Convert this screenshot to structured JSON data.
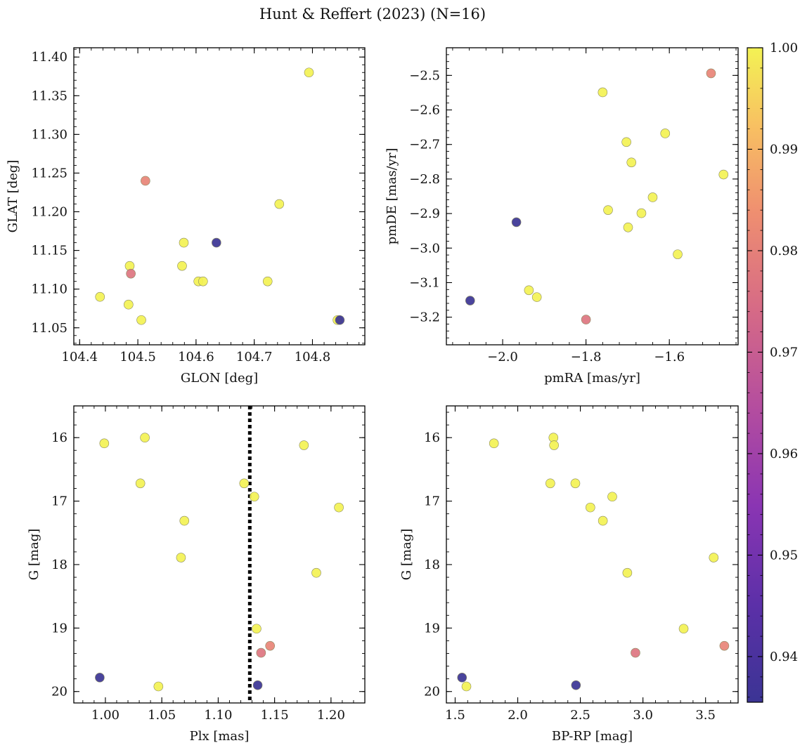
{
  "figure_title": "Hunt & Reffert (2023) (N=16)",
  "colorbar": {
    "range": [
      0.9355,
      1.0
    ],
    "ticks": [
      "0.94",
      "0.95",
      "0.96",
      "0.97",
      "0.98",
      "0.99",
      "1.00"
    ],
    "tick_values": [
      0.94,
      0.95,
      0.96,
      0.97,
      0.98,
      0.99,
      1.0
    ],
    "colormap": "plasma"
  },
  "chart_data": [
    {
      "type": "scatter",
      "xlabel": "GLON [deg]",
      "ylabel": "GLAT [deg]",
      "xlim": [
        104.39,
        104.89
      ],
      "ylim": [
        11.028,
        11.412
      ],
      "y_inverted": false,
      "xticks": [
        104.4,
        104.5,
        104.6,
        104.7,
        104.8
      ],
      "xtick_labels": [
        "104.4",
        "104.5",
        "104.6",
        "104.7",
        "104.8"
      ],
      "yticks": [
        11.05,
        11.1,
        11.15,
        11.2,
        11.25,
        11.3,
        11.35,
        11.4
      ],
      "ytick_labels": [
        "11.05",
        "11.10",
        "11.15",
        "11.20",
        "11.25",
        "11.30",
        "11.35",
        "11.40"
      ],
      "points": [
        {
          "x": 104.435,
          "y": 11.09,
          "c": 1.0
        },
        {
          "x": 104.484,
          "y": 11.08,
          "c": 1.0
        },
        {
          "x": 104.486,
          "y": 11.13,
          "c": 1.0
        },
        {
          "x": 104.488,
          "y": 11.12,
          "c": 0.977
        },
        {
          "x": 104.506,
          "y": 11.06,
          "c": 1.0
        },
        {
          "x": 104.513,
          "y": 11.24,
          "c": 0.981
        },
        {
          "x": 104.576,
          "y": 11.13,
          "c": 1.0
        },
        {
          "x": 104.579,
          "y": 11.16,
          "c": 1.0
        },
        {
          "x": 104.604,
          "y": 11.11,
          "c": 1.0
        },
        {
          "x": 104.612,
          "y": 11.11,
          "c": 1.0
        },
        {
          "x": 104.635,
          "y": 11.16,
          "c": 0.9355
        },
        {
          "x": 104.723,
          "y": 11.11,
          "c": 1.0
        },
        {
          "x": 104.743,
          "y": 11.21,
          "c": 1.0
        },
        {
          "x": 104.794,
          "y": 11.38,
          "c": 1.0
        },
        {
          "x": 104.847,
          "y": 11.06,
          "c": 0.9355
        },
        {
          "x": 104.843,
          "y": 11.06,
          "c": 1.0
        }
      ]
    },
    {
      "type": "scatter",
      "xlabel": "pmRA [mas/yr]",
      "ylabel": "pmDE [mas/yr]",
      "xlim": [
        -2.135,
        -1.435
      ],
      "ylim": [
        -3.28,
        -2.42
      ],
      "y_inverted": false,
      "xticks": [
        -2.0,
        -1.8,
        -1.6
      ],
      "xtick_labels": [
        "−2.0",
        "−1.8",
        "−1.6"
      ],
      "yticks": [
        -3.2,
        -3.1,
        -3.0,
        -2.9,
        -2.8,
        -2.7,
        -2.6,
        -2.5
      ],
      "ytick_labels": [
        "−3.2",
        "−3.1",
        "−3.0",
        "−2.9",
        "−2.8",
        "−2.7",
        "−2.6",
        "−2.5"
      ],
      "points": [
        {
          "x": -2.078,
          "y": -3.152,
          "c": 0.9355
        },
        {
          "x": -1.967,
          "y": -2.925,
          "c": 0.9355
        },
        {
          "x": -1.937,
          "y": -3.122,
          "c": 1.0
        },
        {
          "x": -1.918,
          "y": -3.142,
          "c": 1.0
        },
        {
          "x": -1.8,
          "y": -3.207,
          "c": 0.977
        },
        {
          "x": -1.76,
          "y": -2.549,
          "c": 1.0
        },
        {
          "x": -1.747,
          "y": -2.89,
          "c": 1.0
        },
        {
          "x": -1.703,
          "y": -2.693,
          "c": 1.0
        },
        {
          "x": -1.699,
          "y": -2.94,
          "c": 1.0
        },
        {
          "x": -1.691,
          "y": -2.752,
          "c": 1.0
        },
        {
          "x": -1.667,
          "y": -2.899,
          "c": 1.0
        },
        {
          "x": -1.64,
          "y": -2.853,
          "c": 1.0
        },
        {
          "x": -1.61,
          "y": -2.668,
          "c": 1.0
        },
        {
          "x": -1.58,
          "y": -3.018,
          "c": 1.0
        },
        {
          "x": -1.5,
          "y": -2.494,
          "c": 0.981
        },
        {
          "x": -1.47,
          "y": -2.787,
          "c": 1.0
        }
      ]
    },
    {
      "type": "scatter",
      "xlabel": "Plx [mas]",
      "ylabel": "G [mag]",
      "xlim": [
        0.972,
        1.23
      ],
      "ylim": [
        20.18,
        15.5
      ],
      "y_inverted": true,
      "xticks": [
        1.0,
        1.05,
        1.1,
        1.15,
        1.2
      ],
      "xtick_labels": [
        "1.00",
        "1.05",
        "1.10",
        "1.15",
        "1.20"
      ],
      "yticks": [
        16,
        17,
        18,
        19,
        20
      ],
      "ytick_labels": [
        "16",
        "17",
        "18",
        "19",
        "20"
      ],
      "vline": {
        "x": 1.128,
        "style": "dotted"
      },
      "points": [
        {
          "x": 0.995,
          "y": 19.78,
          "c": 0.9355
        },
        {
          "x": 0.999,
          "y": 16.09,
          "c": 1.0
        },
        {
          "x": 1.031,
          "y": 16.72,
          "c": 1.0
        },
        {
          "x": 1.035,
          "y": 16.0,
          "c": 1.0
        },
        {
          "x": 1.047,
          "y": 19.92,
          "c": 1.0
        },
        {
          "x": 1.067,
          "y": 17.89,
          "c": 1.0
        },
        {
          "x": 1.07,
          "y": 17.31,
          "c": 1.0
        },
        {
          "x": 1.123,
          "y": 16.72,
          "c": 1.0
        },
        {
          "x": 1.132,
          "y": 16.93,
          "c": 1.0
        },
        {
          "x": 1.134,
          "y": 19.01,
          "c": 1.0
        },
        {
          "x": 1.135,
          "y": 19.9,
          "c": 0.9355
        },
        {
          "x": 1.138,
          "y": 19.39,
          "c": 0.977
        },
        {
          "x": 1.146,
          "y": 19.28,
          "c": 0.981
        },
        {
          "x": 1.176,
          "y": 16.12,
          "c": 1.0
        },
        {
          "x": 1.187,
          "y": 18.13,
          "c": 1.0
        },
        {
          "x": 1.207,
          "y": 17.1,
          "c": 1.0
        }
      ]
    },
    {
      "type": "scatter",
      "xlabel": "BP-RP [mag]",
      "ylabel": "G [mag]",
      "xlim": [
        1.43,
        3.76
      ],
      "ylim": [
        20.18,
        15.5
      ],
      "y_inverted": true,
      "xticks": [
        1.5,
        2.0,
        2.5,
        3.0,
        3.5
      ],
      "xtick_labels": [
        "1.5",
        "2.0",
        "2.5",
        "3.0",
        "3.5"
      ],
      "yticks": [
        16,
        17,
        18,
        19,
        20
      ],
      "ytick_labels": [
        "16",
        "17",
        "18",
        "19",
        "20"
      ],
      "points": [
        {
          "x": 1.555,
          "y": 19.78,
          "c": 0.9355
        },
        {
          "x": 1.59,
          "y": 19.92,
          "c": 1.0
        },
        {
          "x": 1.81,
          "y": 16.09,
          "c": 1.0
        },
        {
          "x": 2.26,
          "y": 16.72,
          "c": 1.0
        },
        {
          "x": 2.285,
          "y": 16.0,
          "c": 1.0
        },
        {
          "x": 2.29,
          "y": 16.12,
          "c": 1.0
        },
        {
          "x": 2.46,
          "y": 16.72,
          "c": 1.0
        },
        {
          "x": 2.465,
          "y": 19.9,
          "c": 0.9355
        },
        {
          "x": 2.58,
          "y": 17.1,
          "c": 1.0
        },
        {
          "x": 2.68,
          "y": 17.31,
          "c": 1.0
        },
        {
          "x": 2.755,
          "y": 16.93,
          "c": 1.0
        },
        {
          "x": 2.875,
          "y": 18.13,
          "c": 1.0
        },
        {
          "x": 2.94,
          "y": 19.39,
          "c": 0.977
        },
        {
          "x": 3.325,
          "y": 19.01,
          "c": 1.0
        },
        {
          "x": 3.565,
          "y": 17.89,
          "c": 1.0
        },
        {
          "x": 3.65,
          "y": 19.28,
          "c": 0.981
        }
      ]
    }
  ]
}
